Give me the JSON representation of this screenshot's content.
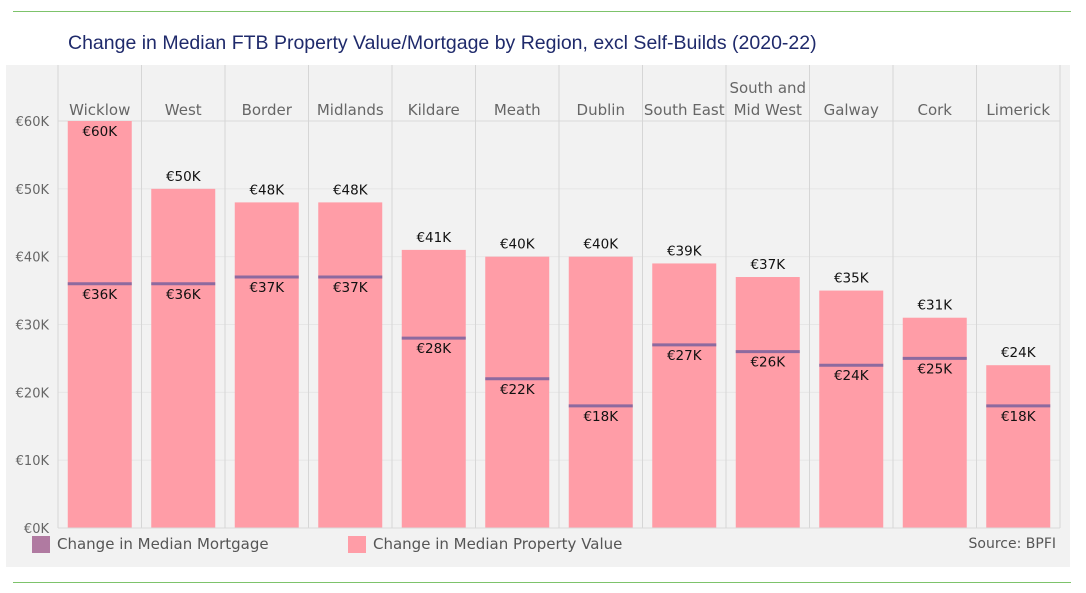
{
  "title": "Change in Median FTB Property Value/Mortgage by Region, excl Self-Builds (2020-22)",
  "source": "Source: BPFI",
  "colors": {
    "property_value": "#ff9da7",
    "mortgage": "#8d6a9f",
    "panel_bg": "#f2f2f2",
    "title": "#1f2a6b",
    "rule": "#7dc36b"
  },
  "legend": [
    {
      "label": "Change in Median Mortgage",
      "color": "#b07aa1"
    },
    {
      "label": "Change in Median Property Value",
      "color": "#ff9da7"
    }
  ],
  "chart_data": {
    "type": "bar",
    "title": "Change in Median FTB Property Value/Mortgage by Region, excl Self-Builds (2020-22)",
    "categories": [
      [
        "Wicklow"
      ],
      [
        "West"
      ],
      [
        "Border"
      ],
      [
        "Midlands"
      ],
      [
        "Kildare"
      ],
      [
        "Meath"
      ],
      [
        "Dublin"
      ],
      [
        "South East"
      ],
      [
        "South and",
        "Mid West"
      ],
      [
        "Galway"
      ],
      [
        "Cork"
      ],
      [
        "Limerick"
      ]
    ],
    "series": [
      {
        "name": "Change in Median Property Value",
        "mark": "bar",
        "values": [
          60,
          50,
          48,
          48,
          41,
          40,
          40,
          39,
          37,
          35,
          31,
          24
        ],
        "labels": [
          "€60K",
          "€50K",
          "€48K",
          "€48K",
          "€41K",
          "€40K",
          "€40K",
          "€39K",
          "€37K",
          "€35K",
          "€31K",
          "€24K"
        ]
      },
      {
        "name": "Change in Median Mortgage",
        "mark": "reference-line",
        "values": [
          36,
          36,
          37,
          37,
          28,
          22,
          18,
          27,
          26,
          24,
          25,
          18
        ],
        "labels": [
          "€36K",
          "€36K",
          "€37K",
          "€37K",
          "€28K",
          "€22K",
          "€18K",
          "€27K",
          "€26K",
          "€24K",
          "€25K",
          "€18K"
        ]
      }
    ],
    "yticks": [
      "€0K",
      "€10K",
      "€20K",
      "€30K",
      "€40K",
      "€50K",
      "€60K"
    ],
    "ytick_values": [
      0,
      10,
      20,
      30,
      40,
      50,
      60
    ],
    "ylim": [
      0,
      60
    ],
    "xlabel": "",
    "ylabel": "",
    "grid": true,
    "legend_position": "bottom-left"
  }
}
